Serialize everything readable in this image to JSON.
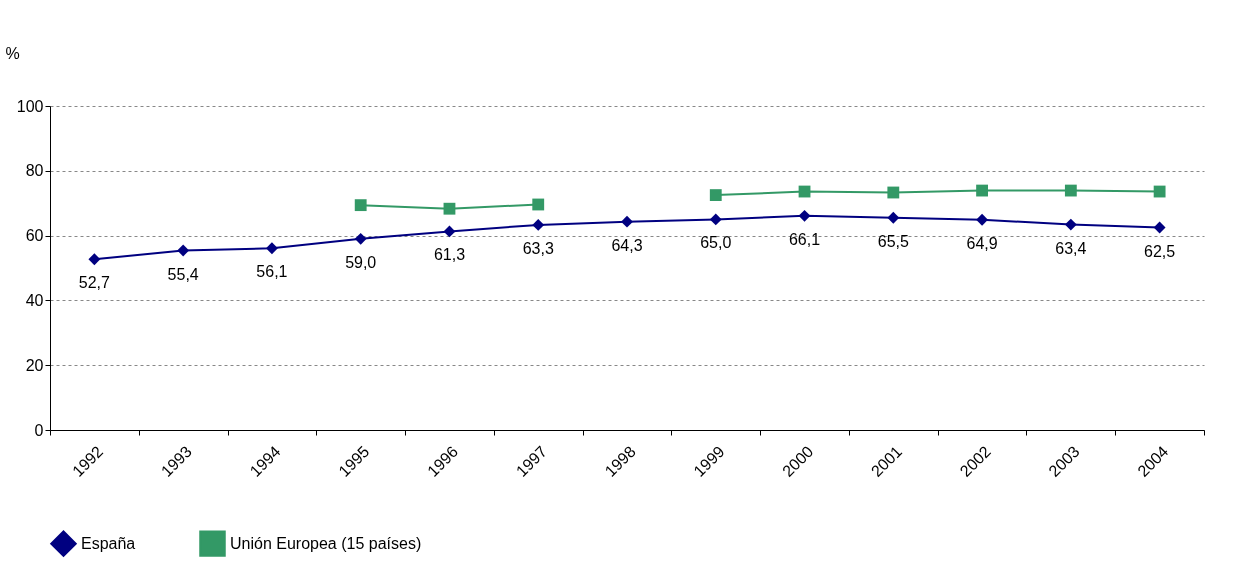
{
  "chart_data": {
    "type": "line",
    "ylabel": "%",
    "categories": [
      "1992",
      "1993",
      "1994",
      "1995",
      "1996",
      "1997",
      "1998",
      "1999",
      "2000",
      "2001",
      "2002",
      "2003",
      "2004"
    ],
    "series": [
      {
        "name": "España",
        "color": "#000080",
        "marker": "diamond",
        "values": [
          52.7,
          55.4,
          56.1,
          59.0,
          61.3,
          63.3,
          64.3,
          65.0,
          66.1,
          65.5,
          64.9,
          63.4,
          62.5
        ],
        "value_labels": [
          "52,7",
          "55,4",
          "56,1",
          "59,0",
          "61,3",
          "63,3",
          "64,3",
          "65,0",
          "66,1",
          "65,5",
          "64,9",
          "63,4",
          "62,5"
        ]
      },
      {
        "name": "Unión Europea (15 países)",
        "color": "#339966",
        "marker": "square",
        "values": [
          null,
          null,
          null,
          69.4,
          68.3,
          69.6,
          null,
          72.5,
          73.6,
          73.3,
          73.9,
          73.9,
          73.6
        ]
      }
    ],
    "ylim": [
      0,
      100
    ],
    "yticks": [
      0,
      20,
      40,
      60,
      80,
      100
    ],
    "grid": "y",
    "legend": "bottom",
    "line_style": "solid"
  }
}
